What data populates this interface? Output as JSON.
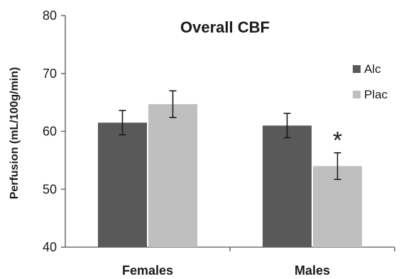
{
  "chart_data": {
    "type": "bar",
    "title": "Overall CBF",
    "xlabel": "",
    "ylabel": "Perfusion (mL/100g/min)",
    "ylim": [
      40,
      80
    ],
    "yticks": [
      40,
      50,
      60,
      70,
      80
    ],
    "categories": [
      "Females",
      "Males"
    ],
    "series": [
      {
        "name": "Alc",
        "color": "#595959",
        "values": [
          61.5,
          61.0
        ],
        "errors": [
          2.1,
          2.1
        ]
      },
      {
        "name": "Plac",
        "color": "#bfbfbf",
        "values": [
          64.7,
          54.0
        ],
        "errors": [
          2.3,
          2.3
        ]
      }
    ],
    "legend_position": "top-right",
    "annotations": [
      {
        "text": "*",
        "category": "Males",
        "series": "Plac"
      }
    ],
    "grid": false
  }
}
